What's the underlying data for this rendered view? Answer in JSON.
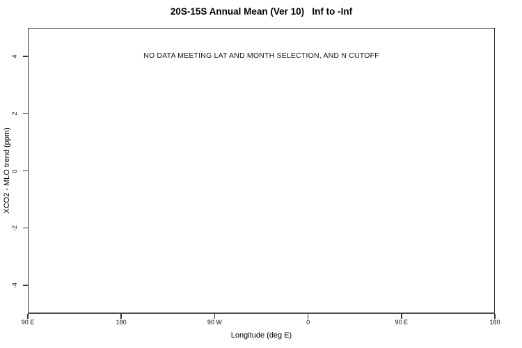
{
  "chart_data": {
    "type": "scatter",
    "title": "20S-15S Annual Mean (Ver 10)   Inf to -Inf",
    "no_data_message": "NO DATA MEETING LAT AND MONTH SELECTION, AND N CUTOFF",
    "xlabel": "Longitude (deg E)",
    "ylabel": "XCO2 - MLO trend (ppm)",
    "x_tick_labels": [
      "90 E",
      "180",
      "90 W",
      "0",
      "90 E",
      "180"
    ],
    "y_ticks": [
      {
        "value": -4,
        "label": "-4"
      },
      {
        "value": -2,
        "label": "-2"
      },
      {
        "value": 0,
        "label": "0"
      },
      {
        "value": 2,
        "label": "2"
      },
      {
        "value": 4,
        "label": "4"
      }
    ],
    "ylim": [
      -5,
      5
    ],
    "series": [],
    "grid": false,
    "legend": "none",
    "colors": {
      "background": "#ffffff",
      "axis_line": "#333333",
      "text": "#000000"
    }
  }
}
